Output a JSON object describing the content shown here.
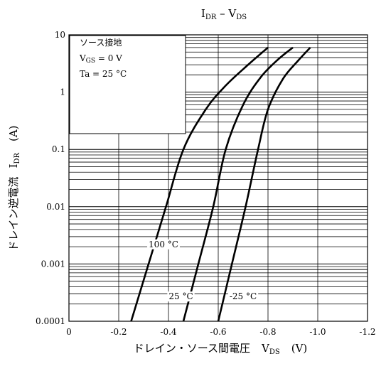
{
  "chart_data": {
    "type": "line",
    "title": {
      "main": "I",
      "sub": "DR",
      "sep": " – V",
      "sub2": "DS"
    },
    "xlabel": {
      "text": "ドレイン・ソース間電圧",
      "sym": "V",
      "sub": "DS",
      "unit": "(V)"
    },
    "ylabel": {
      "text": "ドレイン逆電流",
      "sym": "I",
      "sub": "DR",
      "unit": "(A)"
    },
    "x_scale": "linear",
    "y_scale": "log",
    "xlim": [
      0,
      -1.2
    ],
    "ylim": [
      0.0001,
      10
    ],
    "x_ticks": [
      {
        "v": 0,
        "label": "0"
      },
      {
        "v": -0.2,
        "label": "-0.2"
      },
      {
        "v": -0.4,
        "label": "-0.4"
      },
      {
        "v": -0.6,
        "label": "-0.6"
      },
      {
        "v": -0.8,
        "label": "-0.8"
      },
      {
        "v": -1.0,
        "label": "-1.0"
      },
      {
        "v": -1.2,
        "label": "-1.2"
      }
    ],
    "y_ticks": [
      {
        "v": 10,
        "label": "10"
      },
      {
        "v": 1,
        "label": "1"
      },
      {
        "v": 0.1,
        "label": "0.1"
      },
      {
        "v": 0.01,
        "label": "0.01"
      },
      {
        "v": 0.001,
        "label": "0.001"
      },
      {
        "v": 0.0001,
        "label": "0.0001"
      }
    ],
    "grid": true,
    "conditions": {
      "line1": "ソース接地",
      "line2": {
        "sym": "V",
        "sub": "GS",
        "rest": " = 0 V"
      },
      "line3": "Ta = 25 °C"
    },
    "series": [
      {
        "name": "100 °C",
        "points": [
          [
            -0.25,
            0.0001
          ],
          [
            -0.32,
            0.001
          ],
          [
            -0.39,
            0.01
          ],
          [
            -0.46,
            0.1
          ],
          [
            -0.55,
            0.5
          ],
          [
            -0.63,
            1.3
          ],
          [
            -0.72,
            3.0
          ],
          [
            -0.8,
            6.0
          ]
        ]
      },
      {
        "name": "25 °C",
        "points": [
          [
            -0.46,
            0.0001
          ],
          [
            -0.52,
            0.001
          ],
          [
            -0.58,
            0.01
          ],
          [
            -0.63,
            0.1
          ],
          [
            -0.7,
            0.6
          ],
          [
            -0.77,
            1.8
          ],
          [
            -0.84,
            3.7
          ],
          [
            -0.9,
            6.0
          ]
        ]
      },
      {
        "name": "-25 °C",
        "points": [
          [
            -0.6,
            0.0001
          ],
          [
            -0.655,
            0.001
          ],
          [
            -0.71,
            0.01
          ],
          [
            -0.76,
            0.1
          ],
          [
            -0.8,
            0.5
          ],
          [
            -0.86,
            1.7
          ],
          [
            -0.92,
            3.5
          ],
          [
            -0.97,
            6.0
          ]
        ]
      }
    ],
    "curve_labels": [
      {
        "text": "100 °C",
        "x": -0.38,
        "y": 0.0022
      },
      {
        "text": "25 °C",
        "x": -0.45,
        "y": 0.00027
      },
      {
        "text": "-25 °C",
        "x": -0.7,
        "y": 0.00027
      }
    ]
  }
}
